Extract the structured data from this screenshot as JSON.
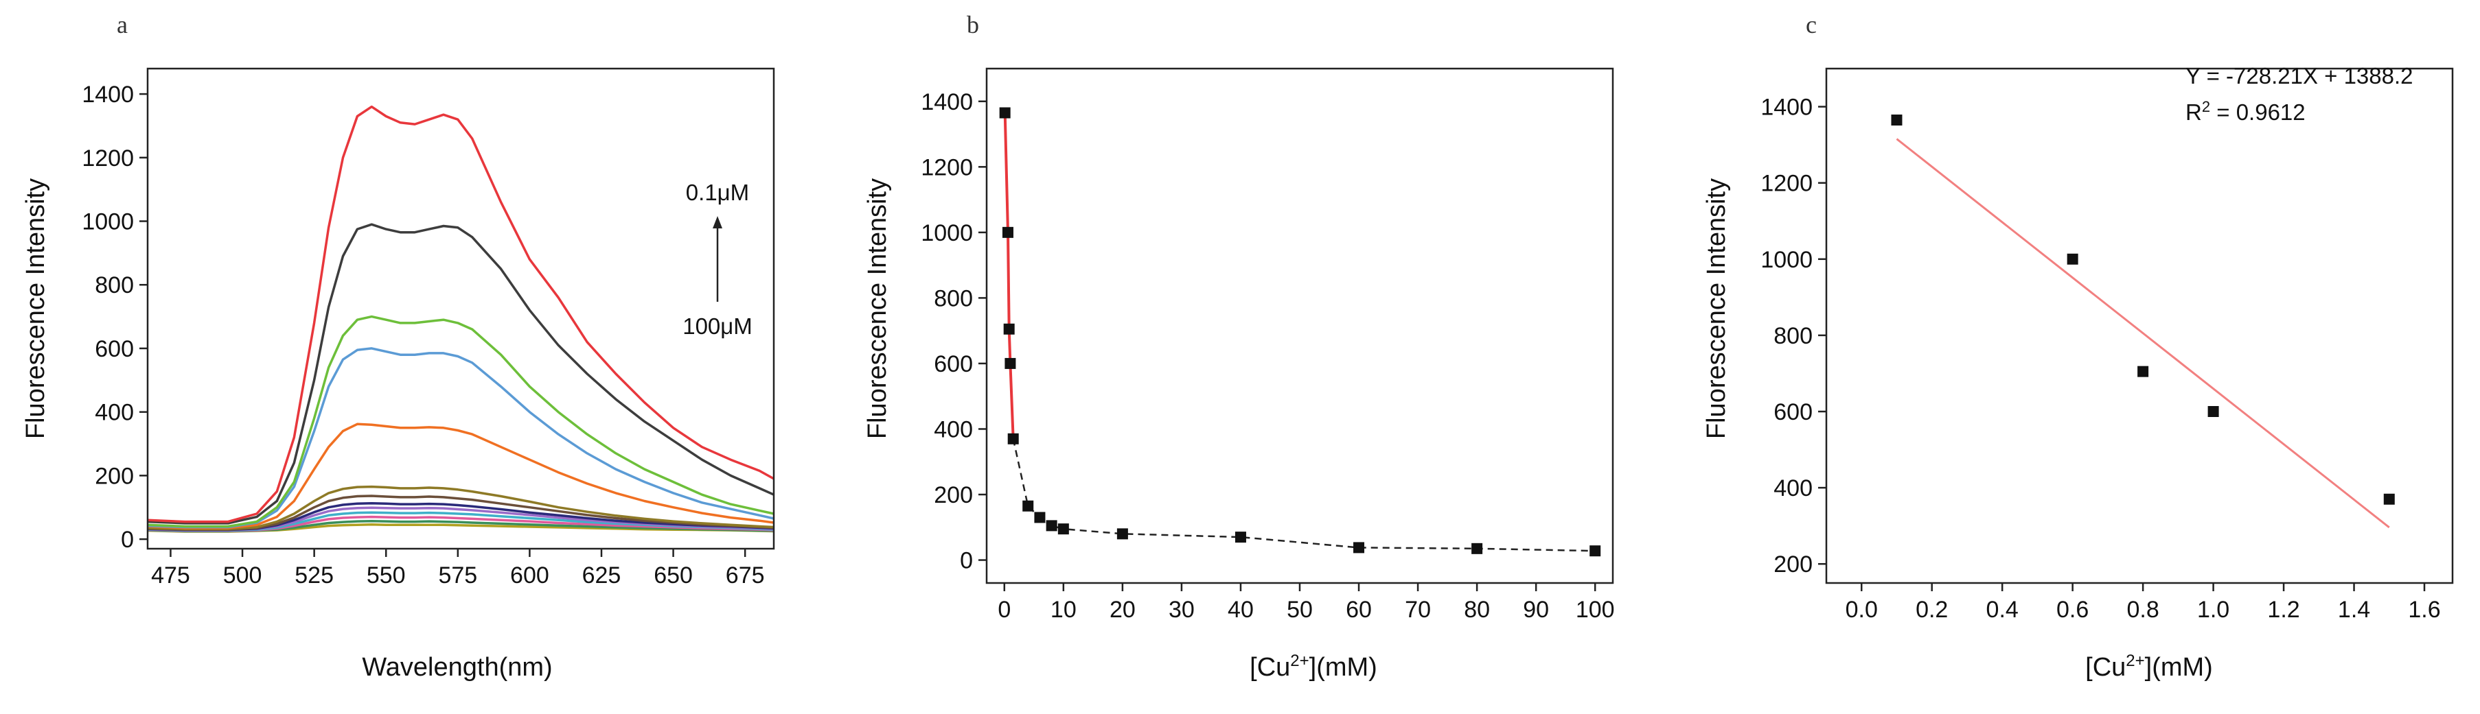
{
  "chart_data": [
    {
      "panel": "a",
      "type": "line",
      "xlabel": "Wavelength(nm)",
      "ylabel": "Fluorescence Intensity",
      "xlim": [
        467,
        685
      ],
      "ylim": [
        -30,
        1480
      ],
      "xticks": [
        475,
        500,
        525,
        550,
        575,
        600,
        625,
        650,
        675
      ],
      "yticks": [
        0,
        200,
        400,
        600,
        800,
        1000,
        1200,
        1400
      ],
      "annotations": [
        {
          "text": "0.1μM"
        },
        {
          "text": "100μM"
        }
      ],
      "series": [
        {
          "color": "#e8373c",
          "x": [
            467,
            480,
            495,
            505,
            512,
            518,
            525,
            530,
            535,
            540,
            545,
            550,
            555,
            560,
            565,
            570,
            575,
            580,
            590,
            600,
            610,
            620,
            630,
            640,
            650,
            660,
            670,
            680,
            685
          ],
          "values": [
            60,
            55,
            55,
            80,
            150,
            320,
            680,
            980,
            1200,
            1330,
            1360,
            1330,
            1310,
            1305,
            1320,
            1335,
            1320,
            1260,
            1060,
            880,
            760,
            620,
            520,
            430,
            350,
            290,
            250,
            215,
            190
          ]
        },
        {
          "color": "#3d3d3d",
          "x": [
            467,
            480,
            495,
            505,
            512,
            518,
            525,
            530,
            535,
            540,
            545,
            550,
            555,
            560,
            565,
            570,
            575,
            580,
            590,
            600,
            610,
            620,
            630,
            640,
            650,
            660,
            670,
            680,
            685
          ],
          "values": [
            55,
            50,
            50,
            70,
            120,
            240,
            500,
            730,
            890,
            975,
            990,
            975,
            965,
            965,
            975,
            985,
            980,
            950,
            850,
            720,
            610,
            520,
            440,
            370,
            310,
            250,
            200,
            160,
            140
          ]
        },
        {
          "color": "#6dbf3a",
          "x": [
            467,
            480,
            495,
            505,
            512,
            518,
            525,
            530,
            535,
            540,
            545,
            550,
            555,
            560,
            565,
            570,
            575,
            580,
            590,
            600,
            610,
            620,
            630,
            640,
            650,
            660,
            670,
            680,
            685
          ],
          "values": [
            45,
            40,
            40,
            55,
            100,
            180,
            380,
            540,
            640,
            690,
            700,
            690,
            680,
            680,
            685,
            690,
            680,
            660,
            580,
            480,
            400,
            330,
            270,
            220,
            180,
            140,
            110,
            90,
            80
          ]
        },
        {
          "color": "#5b9bd5",
          "x": [
            467,
            480,
            495,
            505,
            512,
            518,
            525,
            530,
            535,
            540,
            545,
            550,
            555,
            560,
            565,
            570,
            575,
            580,
            590,
            600,
            610,
            620,
            630,
            640,
            650,
            660,
            670,
            680,
            685
          ],
          "values": [
            42,
            38,
            38,
            52,
            90,
            165,
            340,
            480,
            565,
            595,
            600,
            590,
            580,
            580,
            585,
            585,
            575,
            555,
            480,
            400,
            330,
            270,
            220,
            180,
            145,
            115,
            95,
            75,
            65
          ]
        },
        {
          "color": "#f07022",
          "x": [
            467,
            480,
            495,
            505,
            512,
            518,
            525,
            530,
            535,
            540,
            545,
            550,
            555,
            560,
            565,
            570,
            575,
            580,
            590,
            600,
            610,
            620,
            630,
            640,
            650,
            660,
            670,
            680,
            685
          ],
          "values": [
            40,
            35,
            35,
            45,
            70,
            120,
            220,
            290,
            340,
            362,
            360,
            355,
            350,
            350,
            352,
            350,
            342,
            330,
            290,
            250,
            210,
            175,
            145,
            120,
            100,
            82,
            68,
            58,
            52
          ]
        },
        {
          "color": "#8e7a26",
          "x": [
            467,
            480,
            495,
            505,
            512,
            518,
            525,
            530,
            535,
            540,
            545,
            550,
            555,
            560,
            565,
            570,
            575,
            580,
            590,
            600,
            610,
            620,
            630,
            640,
            650,
            660,
            670,
            680,
            685
          ],
          "values": [
            35,
            32,
            32,
            38,
            55,
            80,
            120,
            145,
            158,
            164,
            165,
            163,
            160,
            160,
            162,
            160,
            156,
            150,
            135,
            118,
            100,
            86,
            74,
            64,
            56,
            50,
            45,
            40,
            38
          ]
        },
        {
          "color": "#6b4f3a",
          "x": [
            467,
            480,
            495,
            505,
            512,
            518,
            525,
            530,
            535,
            540,
            545,
            550,
            555,
            560,
            565,
            570,
            575,
            580,
            590,
            600,
            610,
            620,
            630,
            640,
            650,
            660,
            670,
            680,
            685
          ],
          "values": [
            33,
            30,
            30,
            35,
            48,
            68,
            100,
            120,
            130,
            135,
            136,
            134,
            132,
            132,
            134,
            132,
            128,
            124,
            112,
            100,
            88,
            76,
            66,
            58,
            52,
            46,
            42,
            38,
            36
          ]
        },
        {
          "color": "#2a2a7a",
          "x": [
            467,
            480,
            495,
            505,
            512,
            518,
            525,
            530,
            535,
            540,
            545,
            550,
            555,
            560,
            565,
            570,
            575,
            580,
            590,
            600,
            610,
            620,
            630,
            640,
            650,
            660,
            670,
            680,
            685
          ],
          "values": [
            32,
            29,
            29,
            33,
            44,
            60,
            85,
            100,
            108,
            112,
            113,
            112,
            110,
            110,
            111,
            110,
            107,
            103,
            94,
            84,
            75,
            66,
            58,
            52,
            47,
            43,
            40,
            36,
            34
          ]
        },
        {
          "color": "#9a6cc9",
          "x": [
            467,
            480,
            495,
            505,
            512,
            518,
            525,
            530,
            535,
            540,
            545,
            550,
            555,
            560,
            565,
            570,
            575,
            580,
            590,
            600,
            610,
            620,
            630,
            640,
            650,
            660,
            670,
            680,
            685
          ],
          "values": [
            31,
            28,
            28,
            32,
            40,
            54,
            75,
            88,
            95,
            98,
            99,
            98,
            97,
            97,
            98,
            97,
            94,
            91,
            84,
            76,
            68,
            60,
            54,
            48,
            44,
            40,
            37,
            34,
            32
          ]
        },
        {
          "color": "#3fb0c9",
          "x": [
            467,
            480,
            495,
            505,
            512,
            518,
            525,
            530,
            535,
            540,
            545,
            550,
            555,
            560,
            565,
            570,
            575,
            580,
            590,
            600,
            610,
            620,
            630,
            640,
            650,
            660,
            670,
            680,
            685
          ],
          "values": [
            30,
            27,
            27,
            30,
            36,
            48,
            64,
            75,
            80,
            83,
            84,
            83,
            82,
            82,
            83,
            82,
            80,
            78,
            72,
            66,
            60,
            54,
            49,
            45,
            41,
            38,
            35,
            32,
            30
          ]
        },
        {
          "color": "#e05a9a",
          "x": [
            467,
            480,
            495,
            505,
            512,
            518,
            525,
            530,
            535,
            540,
            545,
            550,
            555,
            560,
            565,
            570,
            575,
            580,
            590,
            600,
            610,
            620,
            630,
            640,
            650,
            660,
            670,
            680,
            685
          ],
          "values": [
            29,
            26,
            26,
            28,
            33,
            42,
            55,
            63,
            67,
            69,
            70,
            69,
            68,
            68,
            69,
            68,
            66,
            64,
            60,
            56,
            51,
            47,
            43,
            40,
            37,
            34,
            32,
            30,
            28
          ]
        },
        {
          "color": "#3a8f5a",
          "x": [
            467,
            480,
            495,
            505,
            512,
            518,
            525,
            530,
            535,
            540,
            545,
            550,
            555,
            560,
            565,
            570,
            575,
            580,
            590,
            600,
            610,
            620,
            630,
            640,
            650,
            660,
            670,
            680,
            685
          ],
          "values": [
            28,
            25,
            25,
            27,
            30,
            36,
            45,
            51,
            54,
            56,
            57,
            56,
            55,
            55,
            56,
            55,
            54,
            52,
            49,
            46,
            43,
            40,
            37,
            35,
            33,
            31,
            29,
            27,
            26
          ]
        },
        {
          "color": "#b0a020",
          "x": [
            467,
            480,
            495,
            505,
            512,
            518,
            525,
            530,
            535,
            540,
            545,
            550,
            555,
            560,
            565,
            570,
            575,
            580,
            590,
            600,
            610,
            620,
            630,
            640,
            650,
            660,
            670,
            680,
            685
          ],
          "values": [
            27,
            24,
            24,
            26,
            28,
            32,
            38,
            42,
            44,
            45,
            46,
            45,
            45,
            45,
            45,
            45,
            44,
            43,
            41,
            39,
            37,
            35,
            33,
            31,
            30,
            29,
            28,
            26,
            25
          ]
        }
      ]
    },
    {
      "panel": "b",
      "type": "scatter",
      "xlabel": "[Cu2+](mM)",
      "xlabel_parts": {
        "pre": "[Cu",
        "sup": "2+",
        "post": "](mM)"
      },
      "ylabel": "Fluorescence Intensity",
      "xlim": [
        -3,
        103
      ],
      "ylim": [
        -70,
        1500
      ],
      "xticks": [
        0,
        10,
        20,
        30,
        40,
        50,
        60,
        70,
        80,
        90,
        100
      ],
      "yticks": [
        0,
        200,
        400,
        600,
        800,
        1000,
        1200,
        1400
      ],
      "points": {
        "x": [
          0.1,
          0.6,
          0.8,
          1,
          1.5,
          4,
          6,
          8,
          10,
          20,
          40,
          60,
          80,
          100
        ],
        "y": [
          1365,
          1000,
          705,
          600,
          370,
          165,
          130,
          105,
          95,
          80,
          70,
          38,
          35,
          28
        ]
      },
      "red_segment_until_x": 1.5,
      "fit_color": "#e8373c"
    },
    {
      "panel": "c",
      "type": "scatter",
      "xlabel": "[Cu2+](mM)",
      "xlabel_parts": {
        "pre": "[Cu",
        "sup": "2+",
        "post": "](mM)"
      },
      "ylabel": "Fluorescence Intensity",
      "xlim": [
        -0.1,
        1.68
      ],
      "ylim": [
        150,
        1500
      ],
      "xticks": [
        0.0,
        0.2,
        0.4,
        0.6,
        0.8,
        1.0,
        1.2,
        1.4,
        1.6
      ],
      "yticks": [
        200,
        400,
        600,
        800,
        1000,
        1200,
        1400
      ],
      "points": {
        "x": [
          0.1,
          0.6,
          0.8,
          1.0,
          1.5
        ],
        "y": [
          1365,
          1000,
          705,
          600,
          370
        ]
      },
      "fit": {
        "slope": -728.21,
        "intercept": 1388.2,
        "x_range": [
          0.1,
          1.5
        ],
        "color": "#f28080"
      },
      "equation": "Y = -728.21X + 1388.2",
      "r2": {
        "pre": "R",
        "sup": "2",
        "post": " = 0.9612"
      }
    }
  ]
}
